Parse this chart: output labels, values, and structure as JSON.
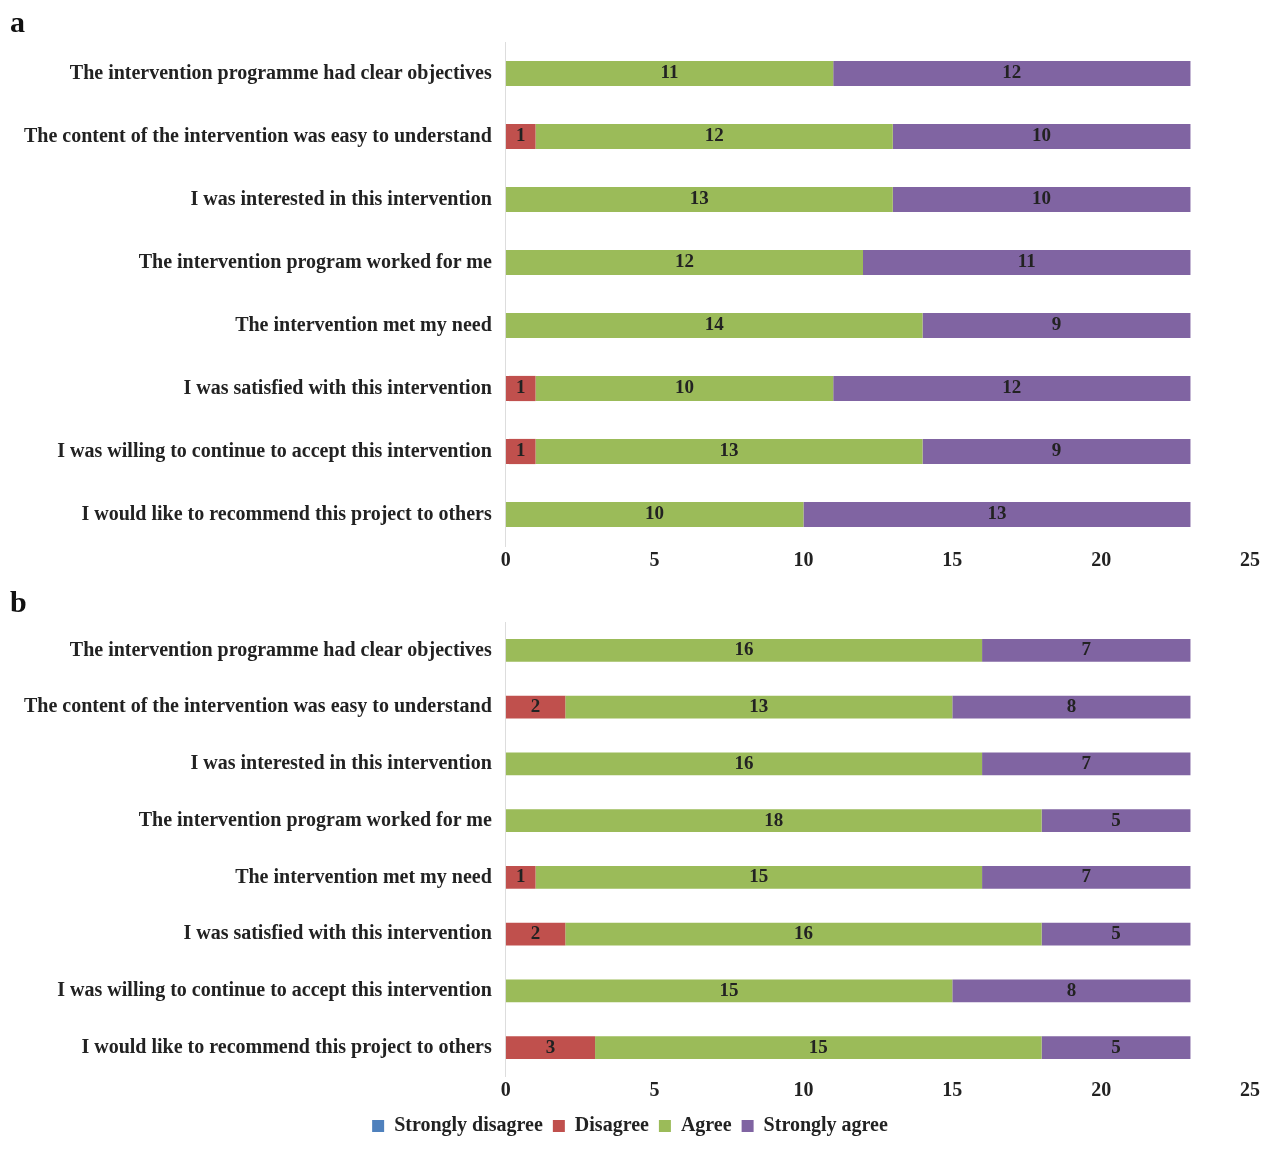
{
  "chart_data": [
    {
      "type": "bar",
      "title": "a",
      "orientation": "horizontal",
      "stacked": true,
      "categories": [
        "The intervention programme had clear objectives",
        "The content of the intervention was easy to understand",
        "I was interested in this intervention",
        "The intervention program worked for me",
        "The intervention met my need",
        "I was satisfied with this intervention",
        "I was willing to continue to accept this intervention",
        "I would like to recommend this project to others"
      ],
      "series": [
        {
          "color": "#c0504d",
          "values": [
            null,
            1,
            null,
            null,
            null,
            1,
            1,
            null
          ]
        },
        {
          "color": "#9bbb59",
          "values": [
            11,
            12,
            13,
            12,
            14,
            10,
            13,
            10
          ]
        },
        {
          "color": "#8064a2",
          "values": [
            12,
            10,
            10,
            11,
            9,
            12,
            9,
            13
          ]
        }
      ],
      "xlim": [
        0,
        25
      ],
      "xticks": [
        0,
        5,
        10,
        15,
        20,
        25
      ],
      "data_labels": true,
      "grid": false,
      "legend": false
    },
    {
      "type": "bar",
      "title": "b",
      "orientation": "horizontal",
      "stacked": true,
      "categories": [
        "The intervention programme had clear objectives",
        "The content of the intervention was easy to understand",
        "I was interested in this intervention",
        "The intervention program worked for me",
        "The intervention met my need",
        "I was satisfied with this intervention",
        "I was willing to continue to accept this intervention",
        "I would like to recommend this project to others"
      ],
      "series": [
        {
          "name": "Strongly disagree",
          "color": "#4f81bd",
          "values": [
            null,
            null,
            null,
            null,
            null,
            null,
            null,
            null
          ]
        },
        {
          "name": "Disagree",
          "color": "#c0504d",
          "values": [
            null,
            2,
            null,
            null,
            1,
            2,
            null,
            3
          ]
        },
        {
          "name": "Agree",
          "color": "#9bbb59",
          "values": [
            16,
            13,
            16,
            18,
            15,
            16,
            15,
            15
          ]
        },
        {
          "name": "Strongly agree",
          "color": "#8064a2",
          "values": [
            7,
            8,
            7,
            5,
            7,
            5,
            8,
            5
          ]
        }
      ],
      "xlim": [
        0,
        25
      ],
      "xticks": [
        0,
        5,
        10,
        15,
        20,
        25
      ],
      "data_labels": true,
      "grid": false,
      "legend": "bottom"
    }
  ]
}
